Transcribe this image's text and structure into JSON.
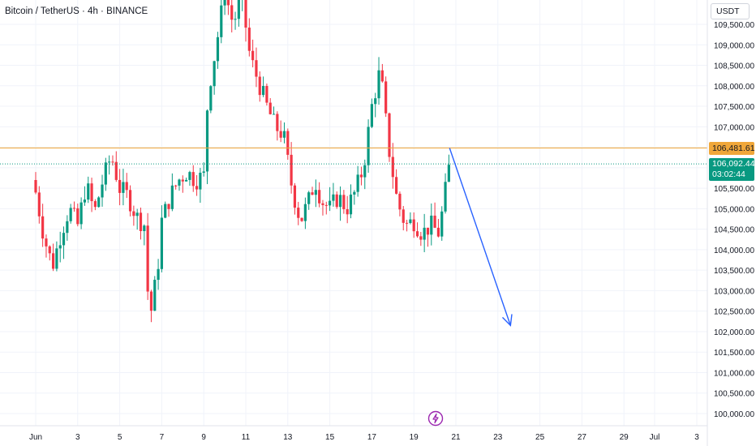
{
  "header": {
    "title": "Bitcoin / TetherUS · 4h · BINANCE"
  },
  "currency_button": {
    "label": "USDT"
  },
  "colors": {
    "up": "#089981",
    "down": "#f23645",
    "ref_line": "#f0a73a",
    "last_line": "#089981",
    "arrow": "#2962ff",
    "bolt": "#9c27b0"
  },
  "price_ref": {
    "value": 106481.61,
    "label": "106,481.61"
  },
  "price_last": {
    "value": 106092.44,
    "label": "106,092.44",
    "countdown": "03:02:44"
  },
  "icons": {
    "bottom_marker": "lightning-bolt-icon"
  },
  "chart_data": {
    "type": "candlestick",
    "title": "Bitcoin / TetherUS · 4h · BINANCE",
    "y_axis_ticks": [
      "100,000.00",
      "100,500.00",
      "101,000.00",
      "101,500.00",
      "102,000.00",
      "102,500.00",
      "103,000.00",
      "103,500.00",
      "104,000.00",
      "104,500.00",
      "105,000.00",
      "105,500.00",
      "106,000.00",
      "106,500.00",
      "107,000.00",
      "107,500.00",
      "108,000.00",
      "108,500.00",
      "109,000.00",
      "109,500.00"
    ],
    "x_axis_ticks": [
      "Jun",
      "3",
      "5",
      "7",
      "9",
      "11",
      "13",
      "15",
      "17",
      "19",
      "21",
      "23",
      "25",
      "27",
      "29",
      "Jul",
      "3"
    ],
    "ylim": [
      99900,
      110300
    ],
    "close_path": [
      [
        1.0,
        105400
      ],
      [
        1.4,
        104300
      ],
      [
        1.8,
        103600
      ],
      [
        2.2,
        104400
      ],
      [
        2.6,
        105000
      ],
      [
        3.0,
        104600
      ],
      [
        3.4,
        105600
      ],
      [
        3.8,
        104900
      ],
      [
        4.2,
        105700
      ],
      [
        4.6,
        106300
      ],
      [
        5.0,
        105500
      ],
      [
        5.4,
        105300
      ],
      [
        5.8,
        104800
      ],
      [
        6.2,
        104600
      ],
      [
        6.4,
        102200
      ],
      [
        6.8,
        103500
      ],
      [
        7.0,
        104700
      ],
      [
        7.4,
        105300
      ],
      [
        7.8,
        105700
      ],
      [
        8.2,
        105900
      ],
      [
        8.6,
        105700
      ],
      [
        9.0,
        105800
      ],
      [
        9.2,
        107800
      ],
      [
        9.6,
        109000
      ],
      [
        10.0,
        110300
      ],
      [
        10.4,
        109500
      ],
      [
        10.8,
        110200
      ],
      [
        11.2,
        108700
      ],
      [
        11.6,
        108100
      ],
      [
        12.0,
        107500
      ],
      [
        12.4,
        107000
      ],
      [
        12.8,
        106800
      ],
      [
        13.2,
        105500
      ],
      [
        13.6,
        104700
      ],
      [
        14.0,
        105200
      ],
      [
        14.3,
        105700
      ],
      [
        14.6,
        105200
      ],
      [
        15.0,
        105000
      ],
      [
        15.4,
        105300
      ],
      [
        15.8,
        105000
      ],
      [
        16.2,
        105400
      ],
      [
        16.6,
        106000
      ],
      [
        17.0,
        107500
      ],
      [
        17.4,
        108400
      ],
      [
        17.8,
        106500
      ],
      [
        18.2,
        105200
      ],
      [
        18.6,
        104600
      ],
      [
        19.0,
        104700
      ],
      [
        19.4,
        104400
      ],
      [
        19.8,
        104600
      ],
      [
        20.2,
        104400
      ],
      [
        20.4,
        105100
      ],
      [
        20.7,
        106092
      ]
    ],
    "annotations": [
      {
        "type": "arrow",
        "from": {
          "x": 20.7,
          "y": 106481
        },
        "to": {
          "x": 23.6,
          "y": 102150
        }
      }
    ]
  }
}
